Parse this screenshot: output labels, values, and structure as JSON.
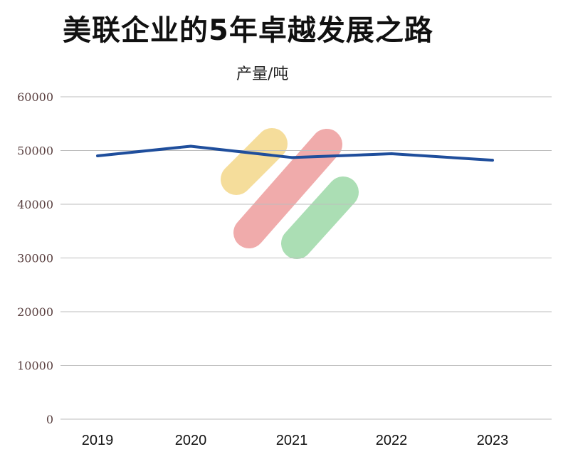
{
  "chart_data": {
    "type": "line",
    "title": "美联企业的5年卓越发展之路",
    "unit_label": "产量/吨",
    "categories": [
      "2019",
      "2020",
      "2021",
      "2022",
      "2023"
    ],
    "series": [
      {
        "values": [
          49000,
          50800,
          48700,
          49400,
          48200
        ]
      }
    ],
    "ylim": [
      0,
      60000
    ],
    "yticks": [
      "0",
      "10000",
      "20000",
      "30000",
      "40000",
      "50000",
      "60000"
    ],
    "grid": true,
    "colors": {
      "line": "#1f4e9c",
      "grid": "#bdbdbd"
    },
    "decoration": {
      "shapes": [
        "yellow-pill",
        "red-pill",
        "green-pill"
      ],
      "colors": [
        "#f2d27a",
        "#eb8f8f",
        "#8fd39b"
      ]
    }
  }
}
